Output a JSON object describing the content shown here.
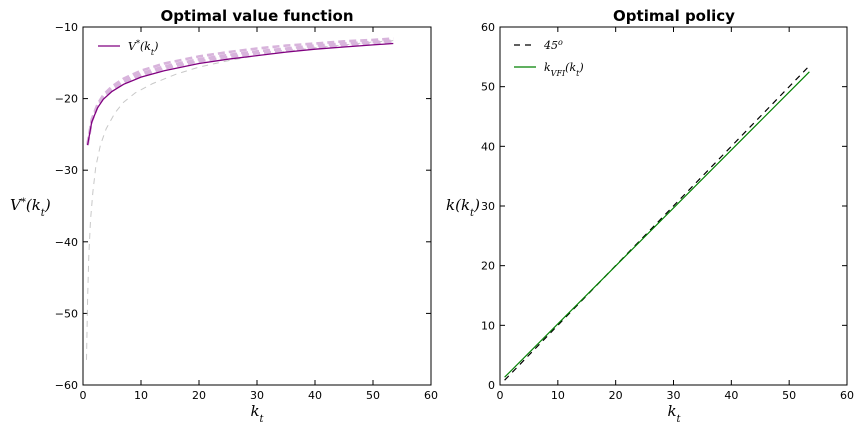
{
  "colors": {
    "value_line": "#800080",
    "iterations": "#d8b4dc",
    "first_iteration": "#c8c8c8",
    "diagonal": "#000000",
    "policy": "#008000"
  },
  "chart_data": [
    {
      "type": "line",
      "title": "Optimal value function",
      "xlabel": "k_t",
      "ylabel": "V*(k_t)",
      "xlim": [
        0,
        60
      ],
      "ylim": [
        -60,
        -10
      ],
      "xticks": [
        "0",
        "10",
        "20",
        "30",
        "40",
        "50",
        "60"
      ],
      "yticks": [
        "−60",
        "−50",
        "−40",
        "−30",
        "−20",
        "−10"
      ],
      "legend": {
        "placement": "top-left",
        "entries": [
          "V*(k_t)"
        ]
      },
      "series": [
        {
          "name": "V*(k_t)",
          "style": "solid",
          "x": [
            0.8,
            1.5,
            2.5,
            3.5,
            5,
            7,
            10,
            14,
            20,
            25,
            30,
            35,
            40,
            45,
            50,
            53.5
          ],
          "y": [
            -26.5,
            -23.3,
            -21.3,
            -20.1,
            -19.0,
            -18.0,
            -17.0,
            -16.1,
            -15.1,
            -14.5,
            -14.0,
            -13.5,
            -13.1,
            -12.8,
            -12.5,
            -12.3
          ]
        },
        {
          "style": "dashed",
          "role": "iteration",
          "x": [
            0.6,
            0.8,
            1.0,
            1.3,
            1.7,
            2.2,
            3.0,
            4.0,
            5.5,
            7.0,
            9.0,
            12,
            16,
            20,
            25,
            30,
            35,
            40,
            45,
            50,
            53.5
          ],
          "y": [
            -56.5,
            -48,
            -42,
            -37,
            -33,
            -29.5,
            -26.5,
            -24.2,
            -22,
            -20.5,
            -19.2,
            -17.9,
            -16.6,
            -15.6,
            -14.7,
            -14.0,
            -13.4,
            -12.9,
            -12.5,
            -12.1,
            -11.9
          ]
        },
        {
          "style": "dashed",
          "role": "iteration",
          "x": [
            0.8,
            1.5,
            2.5,
            3.5,
            5,
            7,
            10,
            14,
            20,
            25,
            30,
            35,
            40,
            45,
            50,
            53.5
          ],
          "y": [
            -26.3,
            -22.9,
            -20.8,
            -19.5,
            -18.3,
            -17.2,
            -16.1,
            -15.1,
            -14.1,
            -13.5,
            -13.0,
            -12.6,
            -12.3,
            -12.0,
            -11.8,
            -11.6
          ]
        },
        {
          "style": "dashed",
          "role": "iteration",
          "x": [
            0.8,
            1.5,
            2.5,
            3.5,
            5,
            7,
            10,
            14,
            20,
            25,
            30,
            35,
            40,
            45,
            50,
            53.5
          ],
          "y": [
            -26.4,
            -23.0,
            -21.0,
            -19.7,
            -18.6,
            -17.5,
            -16.5,
            -15.5,
            -14.5,
            -13.9,
            -13.4,
            -13.0,
            -12.6,
            -12.3,
            -12.1,
            -11.9
          ]
        },
        {
          "style": "dashed",
          "role": "iteration",
          "x": [
            0.8,
            1.5,
            2.5,
            3.5,
            5,
            7,
            10,
            14,
            20,
            25,
            30,
            35,
            40,
            45,
            50,
            53.5
          ],
          "y": [
            -26.5,
            -23.2,
            -21.1,
            -19.9,
            -18.8,
            -17.8,
            -16.8,
            -15.8,
            -14.8,
            -14.2,
            -13.7,
            -13.3,
            -12.9,
            -12.6,
            -12.3,
            -12.1
          ]
        }
      ]
    },
    {
      "type": "line",
      "title": "Optimal policy",
      "xlabel": "k_t",
      "ylabel": "k(k_t)",
      "xlim": [
        0,
        60
      ],
      "ylim": [
        0,
        60
      ],
      "xticks": [
        "0",
        "10",
        "20",
        "30",
        "40",
        "50",
        "60"
      ],
      "yticks": [
        "0",
        "10",
        "20",
        "30",
        "40",
        "50",
        "60"
      ],
      "legend": {
        "placement": "top-left",
        "entries": [
          "45°",
          "k_VFI(k_t)"
        ]
      },
      "series": [
        {
          "name": "45°",
          "style": "dashed",
          "x": [
            0.8,
            53.5
          ],
          "y": [
            0.8,
            53.5
          ]
        },
        {
          "name": "k_VFI(k_t)",
          "style": "solid",
          "x": [
            0.8,
            53.5
          ],
          "y": [
            1.3,
            52.5
          ]
        }
      ]
    }
  ]
}
